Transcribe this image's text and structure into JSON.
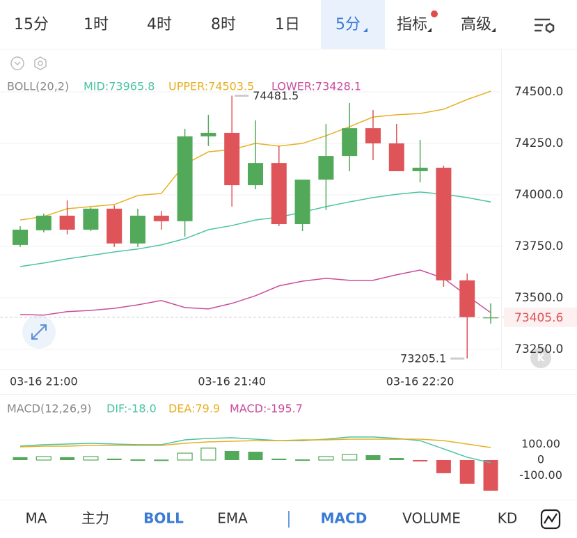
{
  "top_tabs": {
    "items": [
      "15分",
      "1时",
      "4时",
      "8时",
      "1日",
      "5分",
      "指标",
      "高级"
    ],
    "active": 5
  },
  "chart_data": [
    {
      "type": "candlestick",
      "title": "BOLL(20,2)",
      "categories": [
        null,
        "03-16 21:00",
        null,
        null,
        null,
        null,
        null,
        null,
        null,
        "03-16 21:40",
        null,
        null,
        null,
        null,
        null,
        null,
        null,
        "03-16 22:20",
        null,
        null,
        null
      ],
      "series": {
        "up_color": "#53a95a",
        "down_color": "#de5459",
        "open": [
          73757,
          73828,
          73899,
          73831,
          73933,
          73764,
          73899,
          73872,
          74284,
          74301,
          74047,
          74155,
          73858,
          74074,
          74189,
          74324,
          74250,
          74115,
          74132,
          73585,
          73402
        ],
        "high": [
          73848,
          73909,
          73973,
          73939,
          73949,
          73933,
          73922,
          74321,
          74389,
          74481.5,
          74362,
          74237,
          74074,
          74345,
          74446,
          74412,
          74345,
          74267,
          74142,
          73618,
          73473
        ],
        "low": [
          73747,
          73818,
          73808,
          73824,
          73747,
          73747,
          73831,
          73797,
          74237,
          73943,
          74027,
          73848,
          73824,
          73926,
          74115,
          74169,
          74115,
          74061,
          73554,
          73205.1,
          73375
        ],
        "close": [
          73831,
          73899,
          73831,
          73933,
          73764,
          73899,
          73872,
          74284,
          74301,
          74047,
          74155,
          73858,
          74074,
          74189,
          74324,
          74250,
          74115,
          74132,
          73585,
          73406,
          73405.6
        ]
      },
      "lines": [
        {
          "legend": "MID:73965.8",
          "color": "#4cc3a4",
          "values": [
            73652,
            73669,
            73689,
            73706,
            73723,
            73737,
            73757,
            73787,
            73831,
            73851,
            73878,
            73892,
            73916,
            73943,
            73966,
            73987,
            74003,
            74014,
            74003,
            73987,
            73965.8
          ]
        },
        {
          "legend": "UPPER:74503.5",
          "color": "#e6b023",
          "values": [
            73878,
            73895,
            73933,
            73943,
            73953,
            73997,
            74007,
            74149,
            74209,
            74220,
            74250,
            74237,
            74250,
            74287,
            74331,
            74378,
            74389,
            74395,
            74416,
            74463,
            74503.5
          ]
        },
        {
          "legend": "LOWER:73428.1",
          "color": "#c94d9c",
          "values": [
            73419,
            73416,
            73433,
            73439,
            73449,
            73466,
            73487,
            73453,
            73446,
            73473,
            73510,
            73558,
            73581,
            73595,
            73585,
            73585,
            73612,
            73635,
            73595,
            73510,
            73428.1
          ]
        }
      ],
      "ylim": [
        73155,
        74703
      ],
      "yticks": [
        {
          "value": 74500,
          "label": "74500.0"
        },
        {
          "value": 74250,
          "label": "74250.0"
        },
        {
          "value": 74000,
          "label": "74000.0"
        },
        {
          "value": 73750,
          "label": "73750.0"
        },
        {
          "value": 73500,
          "label": "73500.0"
        },
        {
          "value": 73250,
          "label": "73250.0"
        }
      ],
      "grid": true
    },
    {
      "type": "macd",
      "title": "MACD(12,26,9)",
      "values": [
        18,
        22,
        18,
        22,
        9,
        4,
        3,
        44,
        76,
        58,
        53,
        9,
        4,
        22,
        36,
        31,
        13,
        -2,
        -84,
        -151,
        -195.7
      ],
      "up_color": "#53a95a",
      "down_color": "#de5459",
      "lines": [
        {
          "legend": "DIF:-18.0",
          "color": "#4cc3a4",
          "values": [
            89,
            98,
            102,
            107,
            102,
            98,
            98,
            129,
            138,
            142,
            133,
            124,
            124,
            133,
            147,
            147,
            138,
            124,
            71,
            18,
            -18.0
          ]
        },
        {
          "legend": "DEA:79.9",
          "color": "#e6b023",
          "values": [
            84,
            89,
            89,
            93,
            93,
            93,
            93,
            107,
            116,
            120,
            124,
            124,
            129,
            129,
            133,
            133,
            133,
            133,
            124,
            102,
            79.9
          ]
        }
      ],
      "legend": "MACD:-195.7",
      "legend_color": "#c94d9c",
      "ylim": [
        -240,
        271
      ],
      "yticks": [
        {
          "value": 100,
          "label": "100.00"
        },
        0,
        {
          "value": -100,
          "label": "-100.00"
        }
      ]
    }
  ],
  "bottom_tabs": {
    "items": [
      "MA",
      "主力",
      "BOLL",
      "EMA",
      "MACD",
      "VOLUME",
      "KD"
    ],
    "active": [
      2,
      4
    ]
  }
}
